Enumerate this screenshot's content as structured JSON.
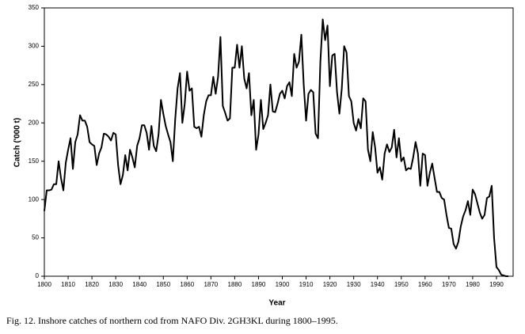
{
  "chart_data": {
    "type": "line",
    "y_label": "Catch ('000 t)",
    "x_label": "Year",
    "caption": "Fig. 12.  Inshore catches of northern cod from NAFO Div. 2GH3KL during 1800–1995.",
    "color": "#000000",
    "grid": false,
    "xlim": [
      1800,
      1997
    ],
    "xticks": [
      1800,
      1810,
      1820,
      1830,
      1840,
      1850,
      1860,
      1870,
      1880,
      1890,
      1900,
      1910,
      1920,
      1930,
      1940,
      1950,
      1960,
      1970,
      1980,
      1990
    ],
    "ylim": [
      0,
      350
    ],
    "yticks": [
      0,
      50,
      100,
      150,
      200,
      250,
      300,
      350
    ],
    "x": [
      1800,
      1801,
      1802,
      1803,
      1804,
      1805,
      1806,
      1807,
      1808,
      1809,
      1810,
      1811,
      1812,
      1813,
      1814,
      1815,
      1816,
      1817,
      1818,
      1819,
      1820,
      1821,
      1822,
      1823,
      1824,
      1825,
      1826,
      1827,
      1828,
      1829,
      1830,
      1831,
      1832,
      1833,
      1834,
      1835,
      1836,
      1837,
      1838,
      1839,
      1840,
      1841,
      1842,
      1843,
      1844,
      1845,
      1846,
      1847,
      1848,
      1849,
      1850,
      1851,
      1852,
      1853,
      1854,
      1855,
      1856,
      1857,
      1858,
      1859,
      1860,
      1861,
      1862,
      1863,
      1864,
      1865,
      1866,
      1867,
      1868,
      1869,
      1870,
      1871,
      1872,
      1873,
      1874,
      1875,
      1876,
      1877,
      1878,
      1879,
      1880,
      1881,
      1882,
      1883,
      1884,
      1885,
      1886,
      1887,
      1888,
      1889,
      1890,
      1891,
      1892,
      1893,
      1894,
      1895,
      1896,
      1897,
      1898,
      1899,
      1900,
      1901,
      1902,
      1903,
      1904,
      1905,
      1906,
      1907,
      1908,
      1909,
      1910,
      1911,
      1912,
      1913,
      1914,
      1915,
      1916,
      1917,
      1918,
      1919,
      1920,
      1921,
      1922,
      1923,
      1924,
      1925,
      1926,
      1927,
      1928,
      1929,
      1930,
      1931,
      1932,
      1933,
      1934,
      1935,
      1936,
      1937,
      1938,
      1939,
      1940,
      1941,
      1942,
      1943,
      1944,
      1945,
      1946,
      1947,
      1948,
      1949,
      1950,
      1951,
      1952,
      1953,
      1954,
      1955,
      1956,
      1957,
      1958,
      1959,
      1960,
      1961,
      1962,
      1963,
      1964,
      1965,
      1966,
      1967,
      1968,
      1969,
      1970,
      1971,
      1972,
      1973,
      1974,
      1975,
      1976,
      1977,
      1978,
      1979,
      1980,
      1981,
      1982,
      1983,
      1984,
      1985,
      1986,
      1987,
      1988,
      1989,
      1990,
      1991,
      1992,
      1993,
      1994,
      1995
    ],
    "values": [
      85,
      112,
      112,
      113,
      120,
      120,
      150,
      128,
      112,
      148,
      165,
      180,
      140,
      175,
      185,
      210,
      203,
      203,
      195,
      175,
      172,
      170,
      145,
      160,
      168,
      186,
      185,
      182,
      177,
      187,
      185,
      145,
      120,
      132,
      158,
      138,
      165,
      155,
      142,
      170,
      180,
      197,
      197,
      187,
      165,
      196,
      170,
      163,
      185,
      230,
      212,
      196,
      185,
      175,
      150,
      205,
      245,
      265,
      200,
      225,
      267,
      242,
      245,
      195,
      193,
      195,
      182,
      210,
      228,
      236,
      236,
      260,
      238,
      260,
      312,
      222,
      213,
      203,
      206,
      272,
      272,
      302,
      272,
      300,
      258,
      245,
      265,
      210,
      230,
      165,
      185,
      230,
      192,
      200,
      210,
      250,
      215,
      214,
      225,
      238,
      242,
      232,
      248,
      253,
      235,
      290,
      272,
      280,
      315,
      250,
      203,
      238,
      243,
      240,
      186,
      180,
      280,
      335,
      308,
      327,
      248,
      288,
      290,
      240,
      212,
      245,
      300,
      292,
      235,
      228,
      200,
      190,
      205,
      193,
      232,
      228,
      165,
      150,
      188,
      168,
      135,
      142,
      126,
      160,
      172,
      162,
      168,
      191,
      155,
      180,
      150,
      155,
      138,
      141,
      140,
      155,
      175,
      160,
      118,
      160,
      158,
      118,
      135,
      147,
      128,
      110,
      110,
      102,
      100,
      80,
      63,
      62,
      42,
      36,
      45,
      65,
      78,
      86,
      98,
      80,
      113,
      107,
      95,
      83,
      75,
      80,
      102,
      104,
      118,
      50,
      12,
      8,
      2,
      1,
      0,
      0
    ]
  }
}
